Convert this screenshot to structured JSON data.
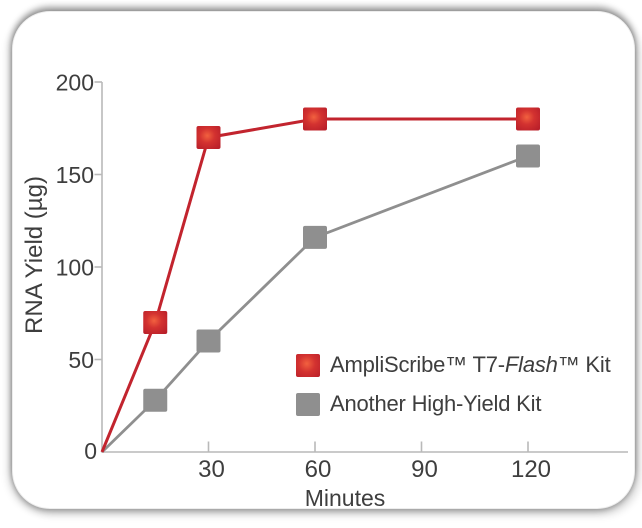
{
  "chart_data": {
    "type": "line",
    "title": "",
    "xlabel": "Minutes",
    "ylabel": "RNA Yield (µg)",
    "x": [
      0,
      15,
      30,
      60,
      120
    ],
    "series": [
      {
        "name": "AmpliScribe™ T7-Flash™ Kit",
        "values": [
          0,
          70,
          170,
          180,
          180
        ],
        "color": "#c2242e",
        "marker": "square-red-gradient"
      },
      {
        "name": "Another High-Yield Kit",
        "values": [
          0,
          28,
          60,
          116,
          160
        ],
        "color": "#8f8f8f",
        "marker": "square-gray"
      }
    ],
    "x_ticks": [
      30,
      60,
      90,
      120
    ],
    "y_ticks": [
      50,
      100,
      150,
      200
    ],
    "origin_tick_label": "0",
    "xlim": [
      0,
      148
    ],
    "ylim": [
      0,
      200
    ],
    "grid": false,
    "legend_position": "inside-lower-right"
  },
  "legend": {
    "items": [
      {
        "pre": "AmpliScribe™ T7-",
        "italic": "Flash",
        "post": "™ Kit",
        "swatch_color": "#d33230"
      },
      {
        "pre": "Another High-Yield Kit",
        "italic": "",
        "post": "",
        "swatch_color": "#8f8f8f"
      }
    ]
  },
  "colors": {
    "red_line": "#c2242e",
    "red_marker_center": "#f2613f",
    "red_marker_mid": "#d33230",
    "red_marker_edge": "#b91f2a",
    "gray": "#8f8f8f",
    "axis": "#b9b9b9",
    "text": "#3e3e3e",
    "card_bg": "#ffffff"
  }
}
